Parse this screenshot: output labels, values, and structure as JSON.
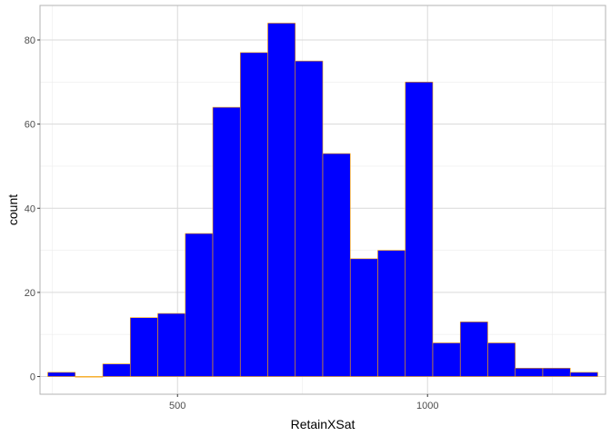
{
  "chart_data": {
    "type": "bar",
    "subtype": "histogram",
    "xlabel": "RetainXSat",
    "ylabel": "count",
    "bin_width": 55,
    "bin_centers": [
      268,
      323,
      378,
      433,
      488,
      543,
      598,
      653,
      708,
      763,
      818,
      873,
      928,
      983,
      1038,
      1093,
      1148,
      1203,
      1258,
      1313
    ],
    "values": [
      1,
      0,
      3,
      14,
      15,
      34,
      64,
      77,
      84,
      75,
      53,
      28,
      30,
      70,
      8,
      13,
      8,
      2,
      2,
      1
    ],
    "xlim": [
      225,
      1356
    ],
    "ylim": [
      -4.2,
      88.2
    ],
    "x_ticks": [
      500,
      1000
    ],
    "x_tick_labels": [
      "500",
      "1000"
    ],
    "y_ticks": [
      0,
      20,
      40,
      60,
      80
    ],
    "y_tick_labels": [
      "0",
      "20",
      "40",
      "60",
      "80"
    ],
    "grid": true,
    "legend": "none",
    "colors": {
      "bar_fill": "#0000ff",
      "bar_outline": "#ffa500",
      "grid_major": "#d9d9d9",
      "grid_minor": "#ececec",
      "panel_border": "#b3b3b3",
      "tick_text": "#4d4d4d"
    }
  }
}
